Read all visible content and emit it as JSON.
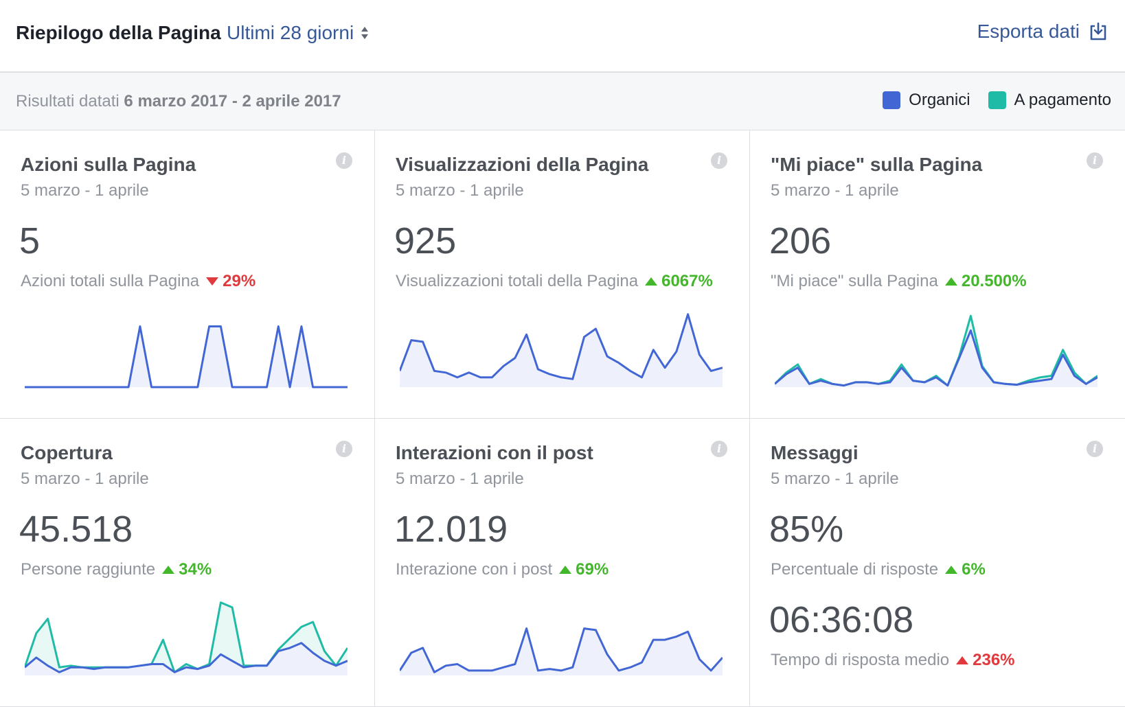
{
  "header": {
    "title": "Riepilogo della Pagina",
    "range": "Ultimi 28 giorni",
    "export_label": "Esporta dati"
  },
  "subheader": {
    "results_prefix": "Risultati datati",
    "results_range": "6 marzo 2017 - 2 aprile 2017",
    "legend": [
      {
        "label": "Organici",
        "color": "#4267d5"
      },
      {
        "label": "A pagamento",
        "color": "#1fbba6"
      }
    ]
  },
  "colors": {
    "organic": "#4267d5",
    "paid": "#1fbba6",
    "fill_organic": "#eef1fb",
    "fill_paid": "#e8f8f5",
    "up": "#42b72a",
    "down": "#e0393e"
  },
  "cards": [
    {
      "title": "Azioni sulla Pagina",
      "date": "5 marzo - 1 aprile",
      "value": "5",
      "label": "Azioni totali sulla Pagina",
      "change": "29%",
      "direction": "down"
    },
    {
      "title": "Visualizzazioni della Pagina",
      "date": "5 marzo - 1 aprile",
      "value": "925",
      "label": "Visualizzazioni totali della Pagina",
      "change": "6067%",
      "direction": "up"
    },
    {
      "title": "\"Mi piace\" sulla Pagina",
      "date": "5 marzo - 1 aprile",
      "value": "206",
      "label": "\"Mi piace\" sulla Pagina",
      "change": "20.500%",
      "direction": "up"
    },
    {
      "title": "Copertura",
      "date": "5 marzo - 1 aprile",
      "value": "45.518",
      "label": "Persone raggiunte",
      "change": "34%",
      "direction": "up"
    },
    {
      "title": "Interazioni con il post",
      "date": "5 marzo - 1 aprile",
      "value": "12.019",
      "label": "Interazione con i post",
      "change": "69%",
      "direction": "up"
    },
    {
      "title": "Messaggi",
      "date": "5 marzo - 1 aprile",
      "value": "85%",
      "label": "Percentuale di risposte",
      "change": "6%",
      "direction": "up",
      "value2": "06:36:08",
      "label2": "Tempo di risposta medio",
      "change2": "236%",
      "direction2": "up-red"
    }
  ],
  "chart_data": [
    {
      "type": "line",
      "name": "Azioni sulla Pagina",
      "ylim": [
        0,
        4
      ],
      "series": [
        {
          "name": "Organici",
          "values": [
            0,
            0,
            0,
            0,
            0,
            0,
            0,
            0,
            0,
            0,
            3,
            0,
            0,
            0,
            0,
            0,
            3,
            3,
            0,
            0,
            0,
            0,
            3,
            0,
            3,
            0,
            0,
            0,
            0
          ]
        }
      ]
    },
    {
      "type": "area",
      "name": "Visualizzazioni della Pagina",
      "ylim": [
        0,
        100
      ],
      "series": [
        {
          "name": "Organici",
          "values": [
            20,
            58,
            56,
            20,
            18,
            12,
            18,
            12,
            12,
            26,
            36,
            65,
            22,
            16,
            12,
            10,
            62,
            72,
            38,
            30,
            20,
            12,
            46,
            24,
            44,
            90,
            40,
            20,
            24
          ]
        }
      ]
    },
    {
      "type": "line",
      "name": "\"Mi piace\" sulla Pagina",
      "ylim": [
        0,
        100
      ],
      "series": [
        {
          "name": "Organici",
          "values": [
            4,
            16,
            24,
            4,
            8,
            4,
            2,
            6,
            6,
            4,
            6,
            24,
            8,
            6,
            12,
            2,
            36,
            70,
            24,
            6,
            4,
            3,
            6,
            8,
            10,
            40,
            14,
            4,
            12
          ]
        },
        {
          "name": "A pagamento",
          "values": [
            4,
            18,
            28,
            4,
            10,
            4,
            2,
            6,
            6,
            4,
            8,
            28,
            8,
            6,
            14,
            2,
            38,
            88,
            26,
            6,
            4,
            3,
            8,
            12,
            14,
            46,
            18,
            4,
            14
          ]
        }
      ]
    },
    {
      "type": "area",
      "name": "Copertura",
      "ylim": [
        0,
        100
      ],
      "series": [
        {
          "name": "Organici",
          "values": [
            10,
            22,
            12,
            4,
            10,
            10,
            8,
            10,
            10,
            10,
            12,
            14,
            14,
            4,
            10,
            8,
            12,
            26,
            18,
            10,
            12,
            12,
            30,
            34,
            40,
            28,
            18,
            12,
            18
          ]
        },
        {
          "name": "A pagamento",
          "values": [
            10,
            52,
            70,
            10,
            12,
            10,
            10,
            10,
            10,
            10,
            12,
            14,
            44,
            4,
            14,
            8,
            14,
            90,
            84,
            12,
            12,
            12,
            32,
            46,
            60,
            66,
            30,
            12,
            34
          ]
        }
      ]
    },
    {
      "type": "area",
      "name": "Interazioni con il post",
      "ylim": [
        0,
        100
      ],
      "series": [
        {
          "name": "Organici",
          "values": [
            6,
            28,
            34,
            4,
            12,
            14,
            6,
            6,
            6,
            10,
            14,
            58,
            6,
            8,
            6,
            10,
            58,
            56,
            26,
            6,
            10,
            16,
            44,
            44,
            48,
            54,
            20,
            6,
            22
          ]
        }
      ]
    }
  ]
}
